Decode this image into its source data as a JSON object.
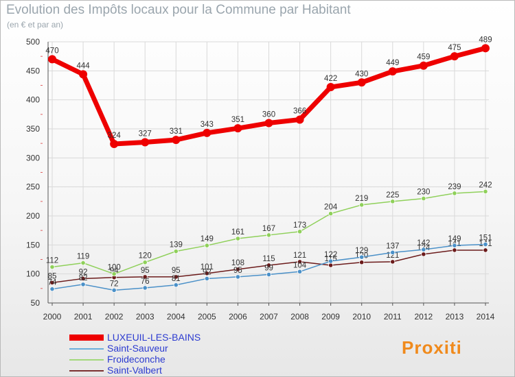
{
  "chart_data": {
    "type": "line",
    "title": "Evolution des Impôts locaux pour la Commune par Habitant",
    "subtitle": "(en € et par an)",
    "xlabel": "",
    "ylabel": "",
    "categories": [
      "2000",
      "2001",
      "2002",
      "2003",
      "2004",
      "2005",
      "2006",
      "2007",
      "2008",
      "2009",
      "2010",
      "2011",
      "2012",
      "2013",
      "2014"
    ],
    "ylim": [
      50,
      500
    ],
    "yticks": [
      50,
      100,
      150,
      200,
      250,
      300,
      350,
      400,
      450,
      500
    ],
    "grid": true,
    "legend_position": "bottom-left",
    "series": [
      {
        "name": "LUXEUIL-LES-BAINS",
        "color": "#ee0000",
        "values": [
          470,
          444,
          324,
          327,
          331,
          343,
          351,
          360,
          366,
          422,
          430,
          449,
          459,
          475,
          489
        ]
      },
      {
        "name": "Saint-Sauveur",
        "color": "#4a90c8",
        "values": [
          74,
          82,
          72,
          76,
          81,
          92,
          95,
          99,
          104,
          122,
          129,
          137,
          142,
          149,
          151
        ]
      },
      {
        "name": "Froideconche",
        "color": "#8fd05a",
        "values": [
          112,
          119,
          100,
          120,
          139,
          149,
          161,
          167,
          173,
          204,
          219,
          225,
          230,
          239,
          242
        ]
      },
      {
        "name": "Saint-Valbert",
        "color": "#6b1a1a",
        "values": [
          85,
          92,
          94,
          95,
          95,
          101,
          108,
          115,
          121,
          115,
          120,
          121,
          134,
          141,
          141
        ]
      }
    ]
  },
  "logo": {
    "text": "Proxiti"
  }
}
